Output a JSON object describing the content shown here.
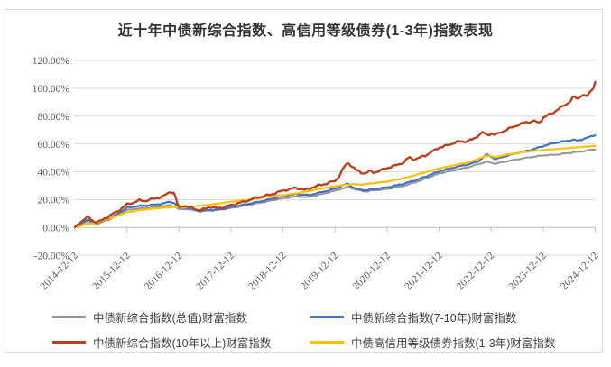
{
  "title": "近十年中债新综合指数、高信用等级债券(1-3年)指数表现",
  "colors": {
    "background": "#ffffff",
    "border": "#d9d9d9",
    "gridline": "#d9d9d9",
    "axis_line": "#bfbfbf",
    "tick_label": "#595959",
    "title_text": "#333333",
    "legend_text": "#404040"
  },
  "chart_data": {
    "type": "line",
    "title": "近十年中债新综合指数、高信用等级债券(1-3年)指数表现",
    "xlabel": "",
    "ylabel": "",
    "ylim": [
      -20,
      120
    ],
    "grid": true,
    "legend_position": "bottom",
    "y_tick_values": [
      120,
      100,
      80,
      60,
      40,
      20,
      0,
      -20
    ],
    "y_tick_labels": [
      "120.00%",
      "100.00%",
      "80.00%",
      "60.00%",
      "40.00%",
      "20.00%",
      "0.00%",
      "-20.00%"
    ],
    "x_tick_labels": [
      "2014-12-12",
      "2015-12-12",
      "2016-12-12",
      "2017-12-12",
      "2018-12-12",
      "2019-12-12",
      "2020-12-12",
      "2021-12-12",
      "2022-12-12",
      "2023-12-12",
      "2024-12-12"
    ],
    "x_unit": "months_since_2014-12-12",
    "x_range_months": [
      0,
      120
    ],
    "series": [
      {
        "name": "中债新综合指数(总值)财富指数",
        "color": "#969696",
        "unit": "percent_cumulative_return",
        "points": [
          [
            0,
            0.2
          ],
          [
            2,
            3.6
          ],
          [
            3,
            4.6
          ],
          [
            5,
            2.5
          ],
          [
            8,
            5.8
          ],
          [
            10,
            9
          ],
          [
            12,
            12.5
          ],
          [
            15,
            13.8
          ],
          [
            18,
            14.5
          ],
          [
            20,
            15.2
          ],
          [
            22,
            16
          ],
          [
            23,
            15.2
          ],
          [
            24,
            13
          ],
          [
            26,
            13.2
          ],
          [
            27,
            12.6
          ],
          [
            29,
            11.5
          ],
          [
            31,
            12.2
          ],
          [
            33,
            12.5
          ],
          [
            36,
            14
          ],
          [
            40,
            16.2
          ],
          [
            44,
            18.5
          ],
          [
            48,
            21
          ],
          [
            51,
            22.2
          ],
          [
            54,
            21.8
          ],
          [
            57,
            24
          ],
          [
            60,
            26.3
          ],
          [
            62,
            28.3
          ],
          [
            63,
            29.2
          ],
          [
            65,
            27
          ],
          [
            67,
            25.8
          ],
          [
            69,
            26.6
          ],
          [
            72,
            27.6
          ],
          [
            76,
            30
          ],
          [
            80,
            34
          ],
          [
            84,
            38.8
          ],
          [
            88,
            41.5
          ],
          [
            91,
            43.5
          ],
          [
            93,
            45.5
          ],
          [
            95,
            47.2
          ],
          [
            97,
            45.8
          ],
          [
            99,
            47.2
          ],
          [
            102,
            49
          ],
          [
            105,
            50.5
          ],
          [
            108,
            51.8
          ],
          [
            111,
            52.3
          ],
          [
            114,
            53.6
          ],
          [
            117,
            54.6
          ],
          [
            120,
            56.2
          ]
        ]
      },
      {
        "name": "中债新综合指数(7-10年)财富指数",
        "color": "#4472c4",
        "unit": "percent_cumulative_return",
        "points": [
          [
            0,
            0.2
          ],
          [
            2,
            4.2
          ],
          [
            3,
            5.5
          ],
          [
            5,
            2.8
          ],
          [
            8,
            6.5
          ],
          [
            10,
            10
          ],
          [
            12,
            14.2
          ],
          [
            15,
            15.5
          ],
          [
            18,
            16.2
          ],
          [
            20,
            17
          ],
          [
            22,
            18.5
          ],
          [
            23,
            17.5
          ],
          [
            24,
            14
          ],
          [
            25,
            14.8
          ],
          [
            27,
            13.2
          ],
          [
            29,
            11.8
          ],
          [
            31,
            12.5
          ],
          [
            33,
            12.8
          ],
          [
            36,
            14.5
          ],
          [
            40,
            17
          ],
          [
            44,
            19.5
          ],
          [
            48,
            22.5
          ],
          [
            51,
            24
          ],
          [
            54,
            23.2
          ],
          [
            57,
            25.5
          ],
          [
            60,
            27.8
          ],
          [
            62,
            30.5
          ],
          [
            63,
            31.7
          ],
          [
            64,
            29
          ],
          [
            65,
            27.8
          ],
          [
            67,
            26.7
          ],
          [
            69,
            27.5
          ],
          [
            72,
            28.8
          ],
          [
            76,
            31.5
          ],
          [
            80,
            35.5
          ],
          [
            84,
            40.3
          ],
          [
            88,
            43.5
          ],
          [
            91,
            45.5
          ],
          [
            93,
            47.5
          ],
          [
            95,
            52.5
          ],
          [
            96,
            51
          ],
          [
            97,
            48.9
          ],
          [
            99,
            51
          ],
          [
            102,
            53.5
          ],
          [
            105,
            55.5
          ],
          [
            108,
            58.5
          ],
          [
            110,
            60.3
          ],
          [
            113,
            62
          ],
          [
            115,
            63
          ],
          [
            116,
            62.4
          ],
          [
            118,
            64.3
          ],
          [
            120,
            66.5
          ]
        ]
      },
      {
        "name": "中债新综合指数(10年以上)财富指数",
        "color": "#b8421f",
        "unit": "percent_cumulative_return",
        "points": [
          [
            0,
            0.3
          ],
          [
            1,
            3
          ],
          [
            2,
            5.5
          ],
          [
            3,
            7.8
          ],
          [
            4,
            5
          ],
          [
            5,
            3.8
          ],
          [
            6,
            4.8
          ],
          [
            8,
            8.5
          ],
          [
            10,
            12
          ],
          [
            12,
            16.5
          ],
          [
            14,
            18.5
          ],
          [
            15,
            19.5
          ],
          [
            16,
            19
          ],
          [
            18,
            20.5
          ],
          [
            20,
            22
          ],
          [
            21,
            23.5
          ],
          [
            22,
            25.8
          ],
          [
            23,
            24.5
          ],
          [
            23.6,
            17
          ],
          [
            24,
            14.5
          ],
          [
            25,
            15.8
          ],
          [
            26,
            15
          ],
          [
            27,
            14.2
          ],
          [
            28,
            13
          ],
          [
            29,
            12.3
          ],
          [
            30,
            13.5
          ],
          [
            31,
            14.8
          ],
          [
            33,
            13.8
          ],
          [
            34,
            14.5
          ],
          [
            36,
            16
          ],
          [
            39,
            18.5
          ],
          [
            42,
            21.5
          ],
          [
            45,
            23.5
          ],
          [
            48,
            26.5
          ],
          [
            51,
            28.5
          ],
          [
            53,
            27
          ],
          [
            56,
            30
          ],
          [
            58,
            31.5
          ],
          [
            60,
            33.5
          ],
          [
            61,
            37
          ],
          [
            62,
            43
          ],
          [
            63,
            46.8
          ],
          [
            64,
            43.5
          ],
          [
            65,
            41
          ],
          [
            66,
            39.5
          ],
          [
            67,
            38.8
          ],
          [
            68,
            40.5
          ],
          [
            69,
            39.5
          ],
          [
            70,
            40.5
          ],
          [
            71,
            41.5
          ],
          [
            72,
            42.8
          ],
          [
            74,
            44.5
          ],
          [
            76,
            47
          ],
          [
            77,
            50.5
          ],
          [
            78,
            49
          ],
          [
            79,
            49.5
          ],
          [
            81,
            52
          ],
          [
            83,
            55.5
          ],
          [
            84,
            57.5
          ],
          [
            86,
            59
          ],
          [
            88,
            61.5
          ],
          [
            90,
            61.8
          ],
          [
            92,
            63.5
          ],
          [
            94,
            68.5
          ],
          [
            95,
            66.2
          ],
          [
            96,
            67.5
          ],
          [
            97,
            66.5
          ],
          [
            99,
            69.5
          ],
          [
            102,
            73.5
          ],
          [
            104,
            75.5
          ],
          [
            105,
            75.9
          ],
          [
            106,
            76.5
          ],
          [
            107,
            74.8
          ],
          [
            108,
            79
          ],
          [
            110,
            82
          ],
          [
            112,
            86
          ],
          [
            114,
            90
          ],
          [
            115,
            94
          ],
          [
            116,
            92.5
          ],
          [
            117,
            95.5
          ],
          [
            118,
            94
          ],
          [
            119,
            98
          ],
          [
            119.6,
            101
          ],
          [
            120,
            104.5
          ]
        ]
      },
      {
        "name": "中债高信用等级债券指数(1-3年)财富指数",
        "color": "#ffc000",
        "unit": "percent_cumulative_return",
        "points": [
          [
            0,
            0.2
          ],
          [
            2,
            2
          ],
          [
            3,
            2.8
          ],
          [
            5,
            3
          ],
          [
            6,
            4.5
          ],
          [
            9,
            7.5
          ],
          [
            12,
            11
          ],
          [
            15,
            12.5
          ],
          [
            18,
            13.5
          ],
          [
            21,
            14.3
          ],
          [
            24,
            14.8
          ],
          [
            25,
            14.5
          ],
          [
            27,
            15
          ],
          [
            30,
            16
          ],
          [
            33,
            17.2
          ],
          [
            36,
            18.5
          ],
          [
            40,
            20
          ],
          [
            44,
            21.8
          ],
          [
            48,
            23.2
          ],
          [
            52,
            25
          ],
          [
            56,
            27.5
          ],
          [
            60,
            29.6
          ],
          [
            62,
            30.5
          ],
          [
            64,
            31.2
          ],
          [
            66,
            30.8
          ],
          [
            69,
            31.8
          ],
          [
            72,
            33
          ],
          [
            76,
            35.5
          ],
          [
            80,
            39
          ],
          [
            84,
            42.5
          ],
          [
            88,
            45
          ],
          [
            91,
            47
          ],
          [
            94,
            50.5
          ],
          [
            95.5,
            51.8
          ],
          [
            97,
            50.3
          ],
          [
            99,
            52
          ],
          [
            102,
            53.5
          ],
          [
            105,
            54.8
          ],
          [
            108,
            55.6
          ],
          [
            112,
            56.6
          ],
          [
            116,
            57.6
          ],
          [
            120,
            58.6
          ]
        ]
      }
    ]
  },
  "legend": {
    "entries": [
      {
        "series_index": 0,
        "label": "中债新综合指数(总值)财富指数"
      },
      {
        "series_index": 1,
        "label": "中债新综合指数(7-10年)财富指数"
      },
      {
        "series_index": 2,
        "label": "中债新综合指数(10年以上)财富指数"
      },
      {
        "series_index": 3,
        "label": "中债高信用等级债券指数(1-3年)财富指数"
      }
    ]
  }
}
